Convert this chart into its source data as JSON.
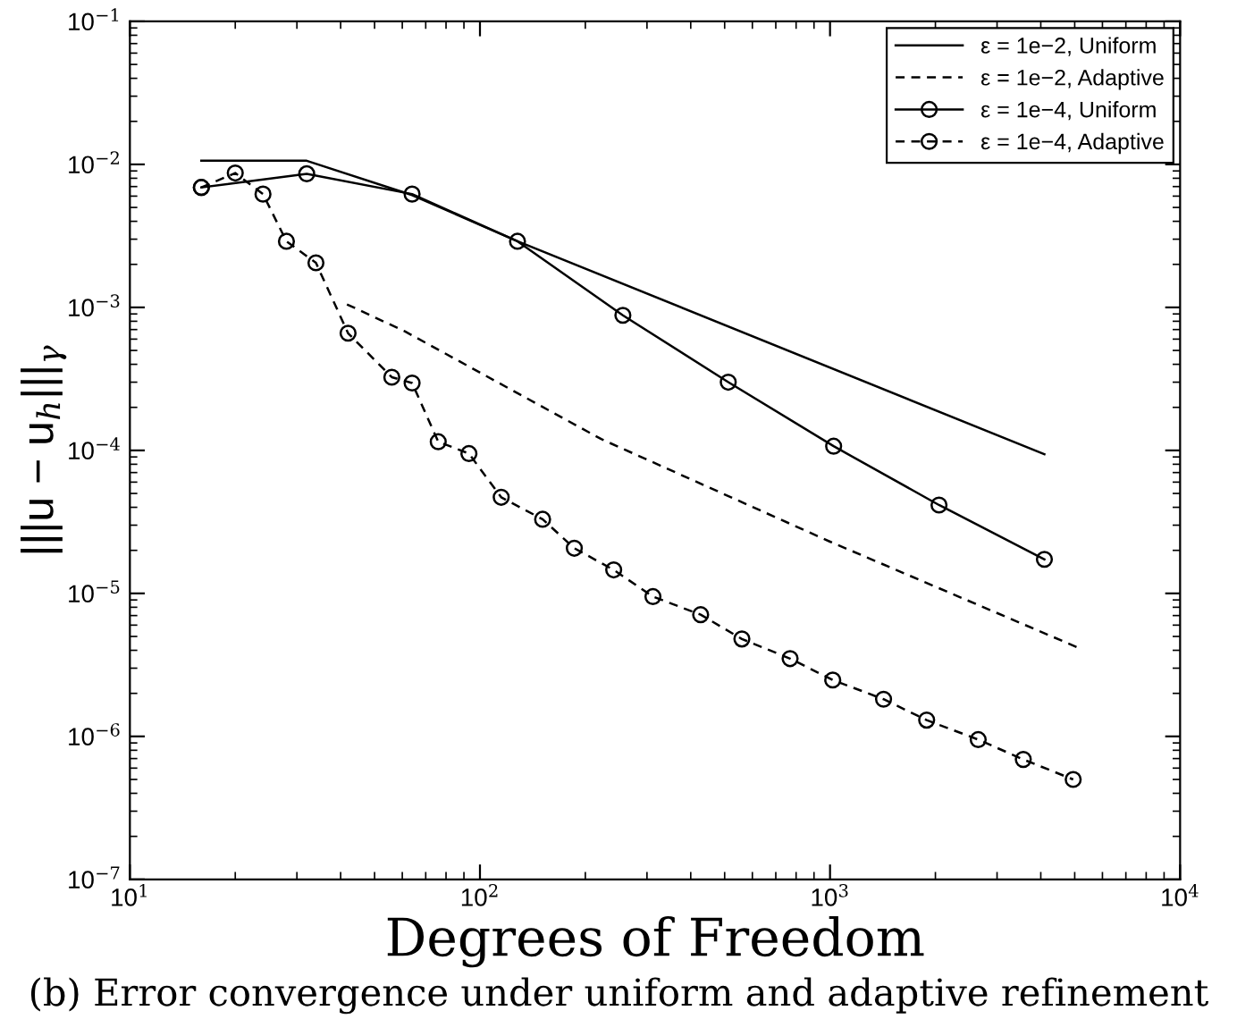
{
  "chart_data": {
    "type": "line",
    "xlabel": "Degrees of Freedom",
    "ylabel": "|||u − u$_{h}$|||$_{γ}$",
    "annotations": [
      "(b) Error convergence under uniform and adaptive refinement"
    ],
    "log": "xy",
    "xlim": [
      10,
      10000
    ],
    "ylim": [
      1e-07,
      0.1
    ],
    "xticks": [
      {
        "value": 10,
        "label": "10$^{1}$"
      },
      {
        "value": 100,
        "label": "10$^{2}$"
      },
      {
        "value": 1000,
        "label": "10$^{3}$"
      },
      {
        "value": 10000,
        "label": "10$^{4}$"
      }
    ],
    "yticks": [
      {
        "value": 1e-07,
        "label": "10$^{−7}$"
      },
      {
        "value": 1e-06,
        "label": "10$^{−6}$"
      },
      {
        "value": 1e-05,
        "label": "10$^{−5}$"
      },
      {
        "value": 0.0001,
        "label": "10$^{−4}$"
      },
      {
        "value": 0.001,
        "label": "10$^{−3}$"
      },
      {
        "value": 0.01,
        "label": "10$^{−2}$"
      },
      {
        "value": 0.1,
        "label": "10$^{−1}$"
      }
    ],
    "grid": false,
    "legend": "top right",
    "series": [
      {
        "name": "ε = 1e−2, Uniform",
        "color": "#000000",
        "marker": "none",
        "line_style": "solid",
        "x": [
          16,
          32,
          64,
          128,
          4096
        ],
        "values": [
          0.0106,
          0.0106,
          0.0061,
          0.0029,
          9.4e-05
        ]
      },
      {
        "name": "ε = 1e−2, Adaptive",
        "color": "#000000",
        "marker": "none",
        "line_style": "dashed",
        "x": [
          41.7,
          61,
          222,
          1000,
          5200
        ],
        "values": [
          0.00105,
          0.00068,
          0.00012,
          2.3e-05,
          4.1e-06
        ]
      },
      {
        "name": "ε = 1e−4, Uniform",
        "color": "#000000",
        "marker": "circle",
        "line_style": "solid",
        "x": [
          16,
          32,
          64,
          128,
          256,
          512,
          1024,
          2048,
          4096
        ],
        "values": [
          0.0069,
          0.0086,
          0.0062,
          0.0029,
          0.00088,
          0.0003,
          0.000107,
          4.15e-05,
          1.73e-05
        ]
      },
      {
        "name": "ε = 1e−4, Adaptive",
        "color": "#000000",
        "marker": "circle",
        "line_style": "dashed",
        "x": [
          16,
          20,
          24,
          28,
          34,
          42,
          56,
          64,
          76,
          93,
          115,
          151,
          186,
          241,
          312,
          427,
          560,
          769,
          1018,
          1422,
          1888,
          2650,
          3565,
          4950
        ],
        "values": [
          0.0069,
          0.0087,
          0.0062,
          0.0029,
          0.00205,
          0.00066,
          0.000325,
          0.000296,
          0.000115,
          9.5e-05,
          4.7e-05,
          3.3e-05,
          2.07e-05,
          1.46e-05,
          9.5e-06,
          7.1e-06,
          4.8e-06,
          3.5e-06,
          2.48e-06,
          1.82e-06,
          1.3e-06,
          9.5e-07,
          6.9e-07,
          5e-07
        ]
      }
    ]
  }
}
